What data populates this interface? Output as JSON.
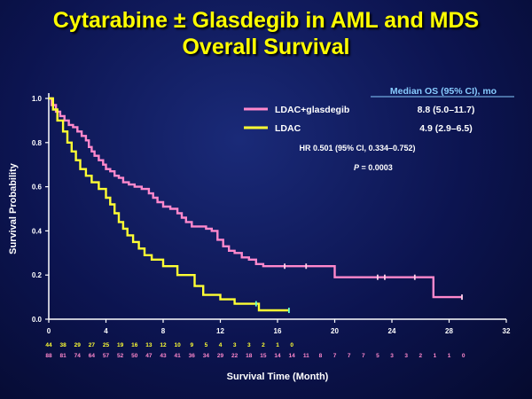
{
  "slide": {
    "title_line1": "Cytarabine ± Glasdegib in AML and MDS",
    "title_line2": "Overall Survival"
  },
  "colors": {
    "background": "#0c1450",
    "title": "#ffff00",
    "glasdegib": "#ff88cc",
    "ldac": "#ffff33",
    "risk_ldac": "#ffff33",
    "risk_glasdegib": "#ff88cc",
    "median_header": "#88ccff"
  },
  "chart_data": {
    "type": "line",
    "xlabel": "Survival Time (Month)",
    "ylabel": "Survival Probability",
    "xlim": [
      0,
      32
    ],
    "ylim": [
      0,
      1.0
    ],
    "x_ticks": [
      0,
      4,
      8,
      12,
      16,
      20,
      24,
      28,
      32
    ],
    "y_ticks": [
      0.0,
      0.2,
      0.4,
      0.6,
      0.8,
      1.0
    ],
    "grid": false,
    "series": [
      {
        "name": "LDAC+glasdegib",
        "color": "#ff88cc",
        "median_os": "8.8 (5.0–11.7)",
        "x": [
          0,
          0.2,
          0.5,
          0.8,
          1.1,
          1.4,
          1.7,
          2.0,
          2.3,
          2.6,
          2.8,
          3.0,
          3.2,
          3.5,
          3.8,
          4.0,
          4.3,
          4.6,
          4.9,
          5.2,
          5.6,
          6.0,
          6.5,
          7.0,
          7.3,
          7.6,
          8.0,
          8.5,
          9.0,
          9.3,
          9.6,
          10.0,
          10.5,
          11.0,
          11.4,
          11.8,
          12.2,
          12.6,
          13.0,
          13.5,
          14.0,
          14.5,
          15.0,
          20.0,
          26.9,
          28.9
        ],
        "y": [
          1.0,
          0.97,
          0.94,
          0.92,
          0.9,
          0.88,
          0.87,
          0.85,
          0.83,
          0.81,
          0.78,
          0.76,
          0.74,
          0.72,
          0.7,
          0.68,
          0.67,
          0.65,
          0.64,
          0.62,
          0.61,
          0.6,
          0.59,
          0.57,
          0.55,
          0.53,
          0.51,
          0.5,
          0.48,
          0.46,
          0.44,
          0.42,
          0.42,
          0.41,
          0.4,
          0.36,
          0.33,
          0.31,
          0.3,
          0.28,
          0.27,
          0.25,
          0.24,
          0.19,
          0.1,
          0.1
        ],
        "censor_x": [
          16.5,
          18.0,
          23.0,
          23.5,
          25.6,
          28.9
        ],
        "censor_y": [
          0.24,
          0.24,
          0.19,
          0.19,
          0.19,
          0.1
        ]
      },
      {
        "name": "LDAC",
        "color": "#ffff33",
        "median_os": "4.9 (2.9–6.5)",
        "x": [
          0,
          0.3,
          0.6,
          1.0,
          1.3,
          1.6,
          1.9,
          2.2,
          2.6,
          3.0,
          3.5,
          4.0,
          4.3,
          4.6,
          4.9,
          5.2,
          5.5,
          5.9,
          6.3,
          6.7,
          7.2,
          8.0,
          9.0,
          10.2,
          10.8,
          12.0,
          13.0,
          14.7,
          16.8
        ],
        "y": [
          1.0,
          0.95,
          0.9,
          0.85,
          0.8,
          0.76,
          0.72,
          0.68,
          0.65,
          0.62,
          0.59,
          0.55,
          0.52,
          0.48,
          0.44,
          0.41,
          0.38,
          0.35,
          0.32,
          0.29,
          0.27,
          0.24,
          0.2,
          0.15,
          0.11,
          0.09,
          0.07,
          0.04,
          0.04
        ],
        "censor_x": [
          14.5,
          16.8
        ],
        "censor_y": [
          0.07,
          0.04
        ]
      }
    ]
  },
  "annotations": {
    "median_header": "Median OS (95% CI), mo",
    "hr": "HR 0.501 (95% CI, 0.334–0.752)",
    "p_italic": "P",
    "p_value": " = 0.0003"
  },
  "at_risk": {
    "ldac": [
      "44",
      "38",
      "29",
      "27",
      "25",
      "19",
      "16",
      "13",
      "12",
      "10",
      "9",
      "5",
      "4",
      "3",
      "3",
      "2",
      "1",
      "0"
    ],
    "glasdegib": [
      "88",
      "81",
      "74",
      "64",
      "57",
      "52",
      "50",
      "47",
      "43",
      "41",
      "36",
      "34",
      "29",
      "22",
      "18",
      "15",
      "14",
      "14",
      "11",
      "8",
      "7",
      "7",
      "7",
      "5",
      "3",
      "3",
      "2",
      "1",
      "1",
      "0"
    ]
  }
}
